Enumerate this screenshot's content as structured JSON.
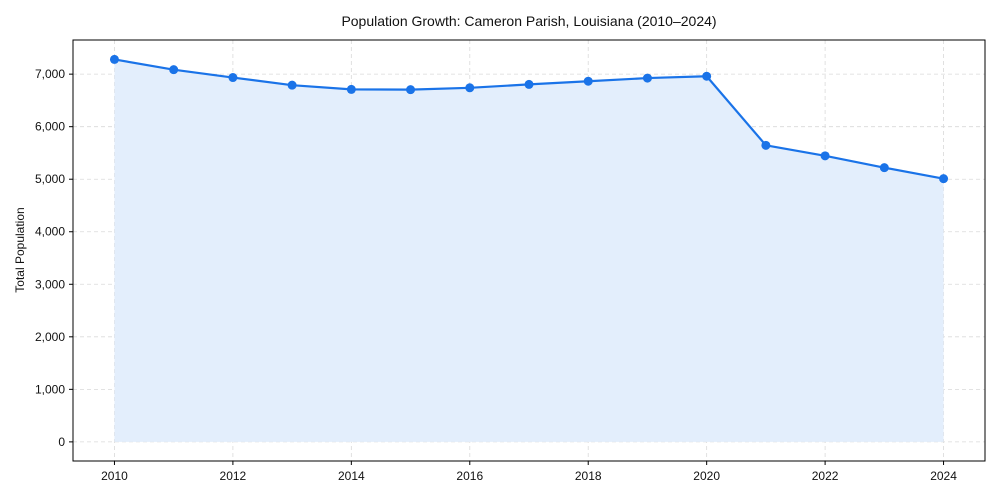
{
  "chart_data": {
    "type": "line",
    "title": "Population Growth: Cameron Parish, Louisiana (2010–2024)",
    "xlabel": "",
    "ylabel": "Total Population",
    "x": [
      2010,
      2011,
      2012,
      2013,
      2014,
      2015,
      2016,
      2017,
      2018,
      2019,
      2020,
      2021,
      2022,
      2023,
      2024
    ],
    "series": [
      {
        "name": "Total Population",
        "values": [
          7280,
          7085,
          6935,
          6790,
          6710,
          6705,
          6740,
          6805,
          6865,
          6925,
          6960,
          5645,
          5445,
          5220,
          5010
        ],
        "color": "#1a73e8",
        "fill": "#e3eefc",
        "marker": "circle",
        "filled_area": true
      }
    ],
    "xticks": [
      2010,
      2012,
      2014,
      2016,
      2018,
      2020,
      2022,
      2024
    ],
    "yticks": [
      0,
      1000,
      2000,
      3000,
      4000,
      5000,
      6000,
      7000
    ],
    "ytick_labels": [
      "0",
      "1,000",
      "2,000",
      "3,000",
      "4,000",
      "5,000",
      "6,000",
      "7,000"
    ],
    "xlim": [
      2009.3,
      2024.7
    ],
    "ylim": [
      -364,
      7650
    ],
    "grid": true,
    "grid_style": "dashed",
    "legend": null
  }
}
